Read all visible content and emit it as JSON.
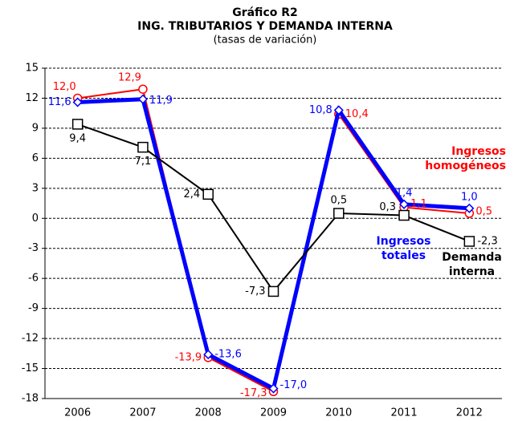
{
  "chart_data": {
    "type": "line",
    "title": "Gráfico R2",
    "subtitle": "ING. TRIBUTARIOS Y DEMANDA INTERNA",
    "annotations": [
      "(tasas de variación)"
    ],
    "categories": [
      "2006",
      "2007",
      "2008",
      "2009",
      "2010",
      "2011",
      "2012"
    ],
    "series": [
      {
        "name": "Ingresos homogéneos",
        "color": "#ff0000",
        "marker": "circle",
        "values": [
          12.0,
          12.9,
          -13.9,
          -17.3,
          10.4,
          1.1,
          0.5
        ],
        "value_labels": [
          "12,0",
          "12,9",
          "-13,9",
          "-17,3",
          "10,4",
          "1,1",
          "0,5"
        ]
      },
      {
        "name": "Ingresos totales",
        "color": "#0000ff",
        "marker": "diamond",
        "values": [
          11.6,
          11.9,
          -13.6,
          -17.0,
          10.8,
          1.4,
          1.0
        ],
        "value_labels": [
          "11,6",
          "11,9",
          "-13,6",
          "-17,0",
          "10,8",
          "1,4",
          "1,0"
        ]
      },
      {
        "name": "Demanda interna",
        "color": "#000000",
        "marker": "square",
        "values": [
          9.4,
          7.1,
          2.4,
          -7.3,
          0.5,
          0.3,
          -2.3
        ],
        "value_labels": [
          "9,4",
          "7,1",
          "2,4",
          "-7,3",
          "0,5",
          "0,3",
          "-2,3"
        ]
      }
    ],
    "ylim": [
      -18,
      15
    ],
    "yticks": [
      -18,
      -15,
      -12,
      -9,
      -6,
      -3,
      0,
      3,
      6,
      9,
      12,
      15
    ],
    "grid": true
  }
}
